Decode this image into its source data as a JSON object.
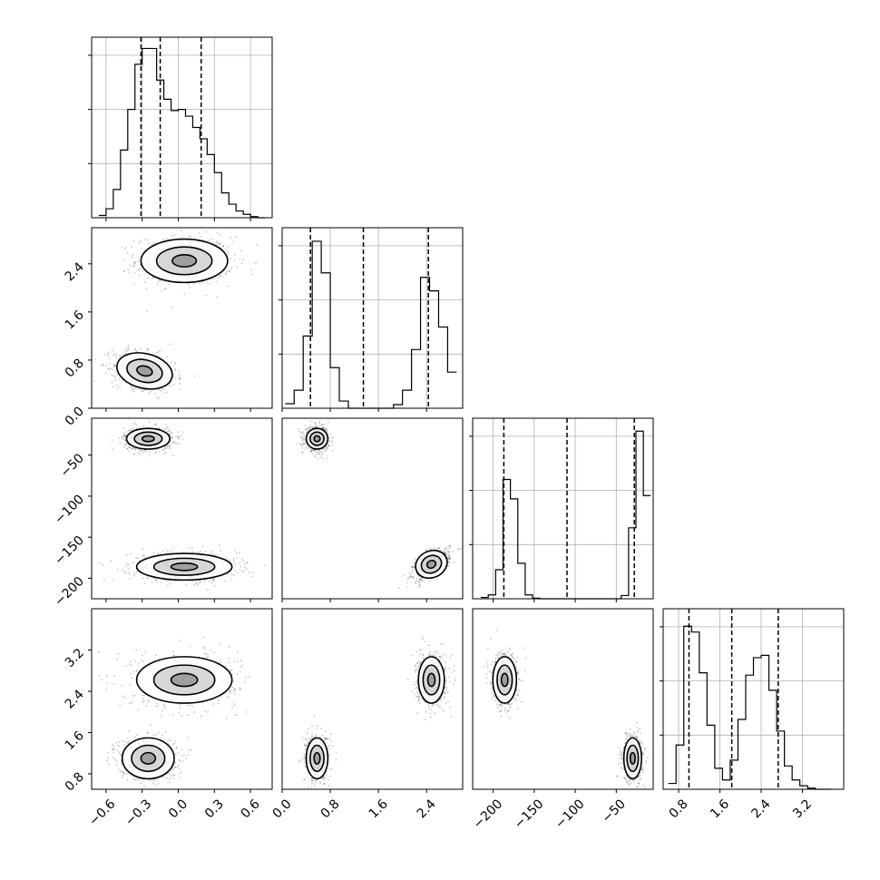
{
  "chart_data": {
    "type": "scatter",
    "title": "",
    "variables": [
      {
        "index": 0,
        "range": [
          -0.72,
          0.78
        ],
        "ticks": [
          -0.6,
          -0.3,
          0.0,
          0.3,
          0.6
        ],
        "tick_labels": [
          "−0.6",
          "−0.3",
          "0.0",
          "0.3",
          "0.6"
        ],
        "quantiles": [
          -0.31,
          -0.15,
          0.19
        ]
      },
      {
        "index": 1,
        "range": [
          0.0,
          3.0
        ],
        "ticks": [
          0.0,
          0.8,
          1.6,
          2.4
        ],
        "tick_labels": [
          "0.0",
          "0.8",
          "1.6",
          "2.4"
        ],
        "quantiles": [
          0.47,
          1.35,
          2.43
        ]
      },
      {
        "index": 2,
        "range": [
          -225,
          -5
        ],
        "ticks": [
          -200,
          -150,
          -100,
          -50
        ],
        "tick_labels": [
          "−200",
          "−150",
          "−100",
          "−50"
        ],
        "quantiles": [
          -187,
          -110,
          -28
        ]
      },
      {
        "index": 3,
        "range": [
          0.5,
          4.0
        ],
        "ticks": [
          0.8,
          1.6,
          2.4,
          3.2
        ],
        "tick_labels": [
          "0.8",
          "1.6",
          "2.4",
          "3.2"
        ],
        "quantiles": [
          1.0,
          1.83,
          2.73
        ]
      }
    ],
    "histograms": [
      {
        "variable": 0,
        "bin_edges": [
          -0.66,
          -0.6,
          -0.54,
          -0.48,
          -0.42,
          -0.36,
          -0.3,
          -0.24,
          -0.18,
          -0.12,
          -0.06,
          0.0,
          0.06,
          0.12,
          0.18,
          0.24,
          0.3,
          0.36,
          0.42,
          0.48,
          0.54,
          0.6,
          0.66,
          0.72
        ],
        "counts": [
          2,
          8,
          25,
          60,
          96,
          136,
          150,
          150,
          122,
          105,
          95,
          96,
          90,
          80,
          70,
          56,
          40,
          22,
          12,
          6,
          3,
          1,
          0
        ],
        "ymax": 160
      },
      {
        "variable": 1,
        "bin_edges": [
          0.05,
          0.2,
          0.35,
          0.5,
          0.65,
          0.8,
          0.95,
          1.1,
          1.25,
          1.4,
          1.55,
          1.7,
          1.85,
          2.0,
          2.15,
          2.3,
          2.45,
          2.6,
          2.75,
          2.9
        ],
        "counts": [
          5,
          20,
          80,
          185,
          150,
          45,
          8,
          0,
          0,
          0,
          0,
          0,
          4,
          20,
          65,
          145,
          130,
          90,
          40
        ],
        "ymax": 200
      },
      {
        "variable": 2,
        "bin_edges": [
          -215,
          -206,
          -197,
          -188,
          -179,
          -170,
          -161,
          -152,
          -143,
          -134,
          -125,
          -116,
          -107,
          -98,
          -89,
          -80,
          -71,
          -62,
          -53,
          -44,
          -35,
          -26,
          -17,
          -8
        ],
        "counts": [
          2,
          6,
          45,
          185,
          155,
          55,
          6,
          1,
          0,
          0,
          0,
          0,
          0,
          0,
          0,
          0,
          0,
          0,
          0,
          5,
          110,
          260,
          160
        ],
        "ymax": 280
      },
      {
        "variable": 3,
        "bin_edges": [
          0.6,
          0.75,
          0.9,
          1.05,
          1.2,
          1.35,
          1.5,
          1.65,
          1.8,
          1.95,
          2.1,
          2.25,
          2.4,
          2.55,
          2.7,
          2.85,
          3.0,
          3.15,
          3.3,
          3.45,
          3.6,
          3.75
        ],
        "counts": [
          5,
          38,
          140,
          135,
          100,
          55,
          18,
          8,
          25,
          60,
          98,
          113,
          115,
          85,
          50,
          20,
          8,
          3,
          1,
          0,
          0
        ],
        "ymax": 155
      }
    ],
    "clusters": [
      {
        "pair": [
          0,
          1
        ],
        "blobs": [
          {
            "mx": 0.05,
            "my": 2.45,
            "sx": 0.2,
            "sy": 0.2
          },
          {
            "mx": -0.28,
            "my": 0.62,
            "sx": 0.13,
            "sy": 0.16,
            "rho": -0.3
          }
        ]
      },
      {
        "pair": [
          0,
          2
        ],
        "blobs": [
          {
            "mx": -0.25,
            "my": -30,
            "sx": 0.1,
            "sy": 7
          },
          {
            "mx": 0.05,
            "my": -186,
            "sx": 0.22,
            "sy": 9
          }
        ]
      },
      {
        "pair": [
          1,
          2
        ],
        "blobs": [
          {
            "mx": 0.58,
            "my": -30,
            "sx": 0.1,
            "sy": 7
          },
          {
            "mx": 2.48,
            "my": -183,
            "sx": 0.15,
            "sy": 9,
            "rho": 0.55
          }
        ]
      },
      {
        "pair": [
          0,
          3
        ],
        "blobs": [
          {
            "mx": 0.05,
            "my": 2.62,
            "sx": 0.22,
            "sy": 0.25
          },
          {
            "mx": -0.25,
            "my": 1.1,
            "sx": 0.12,
            "sy": 0.22
          }
        ]
      },
      {
        "pair": [
          1,
          3
        ],
        "blobs": [
          {
            "mx": 0.58,
            "my": 1.1,
            "sx": 0.1,
            "sy": 0.22
          },
          {
            "mx": 2.48,
            "my": 2.62,
            "sx": 0.12,
            "sy": 0.25
          }
        ]
      },
      {
        "pair": [
          2,
          3
        ],
        "blobs": [
          {
            "mx": -30,
            "my": 1.1,
            "sx": 6,
            "sy": 0.22
          },
          {
            "mx": -186,
            "my": 2.62,
            "sx": 8,
            "sy": 0.25
          }
        ]
      }
    ],
    "grid": true,
    "legend": "none"
  },
  "colors": {
    "axes": "#000000",
    "grid": "#b0b0b0",
    "points": "#000000",
    "contour_fill": "#ffffff",
    "contour_fill_mid": "#c8c8c8",
    "contour_fill_inner": "#888888"
  }
}
